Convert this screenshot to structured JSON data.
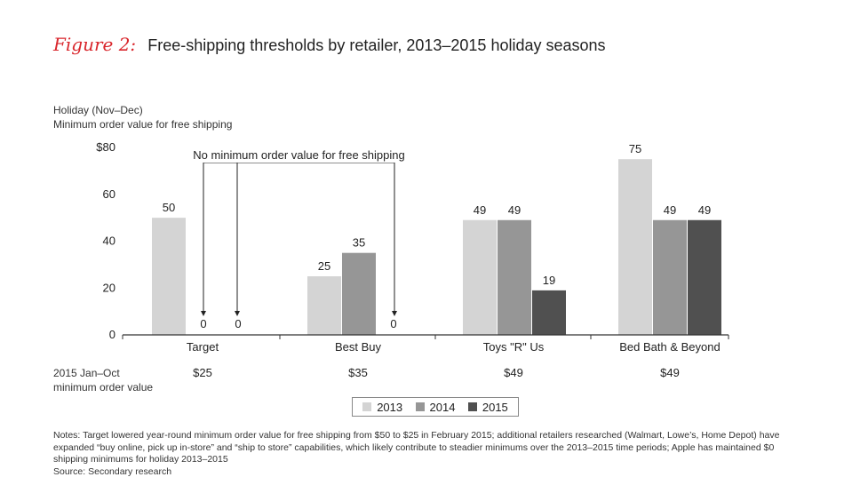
{
  "figure": {
    "label": "Figure 2:",
    "title": "Free-shipping thresholds by retailer, 2013–2015 holiday seasons"
  },
  "ylabel_lines": [
    "Holiday (Nov–Dec)",
    "Minimum order value for free shipping"
  ],
  "annotation": "No minimum order value for free shipping",
  "row2": {
    "label_lines": [
      "2015 Jan–Oct",
      "minimum order value"
    ],
    "values": [
      "$25",
      "$35",
      "$49",
      "$49"
    ]
  },
  "notes": {
    "text": "Notes: Target lowered year-round minimum order value for free shipping from $50 to $25 in February 2015; additional retailers researched (Walmart, Lowe’s, Home Depot) have expanded “buy online, pick up in-store” and “ship to store” capabilities, which likely contribute to steadier minimums over the 2013–2015 time periods; Apple has maintained $0 shipping minimums for holiday 2013–2015",
    "source": "Source: Secondary research"
  },
  "chart_data": {
    "type": "bar",
    "categories": [
      "Target",
      "Best Buy",
      "Toys \"R\" Us",
      "Bed Bath & Beyond"
    ],
    "series": [
      {
        "name": "2013",
        "color": "#d4d4d4",
        "values": [
          50,
          25,
          49,
          75
        ]
      },
      {
        "name": "2014",
        "color": "#969696",
        "values": [
          0,
          35,
          49,
          49
        ]
      },
      {
        "name": "2015",
        "color": "#505050",
        "values": [
          0,
          0,
          19,
          49
        ]
      }
    ],
    "ylim": [
      0,
      80
    ],
    "yticks": [
      "$80",
      "60",
      "40",
      "20",
      "0"
    ],
    "ytick_values": [
      80,
      60,
      40,
      20,
      0
    ]
  }
}
